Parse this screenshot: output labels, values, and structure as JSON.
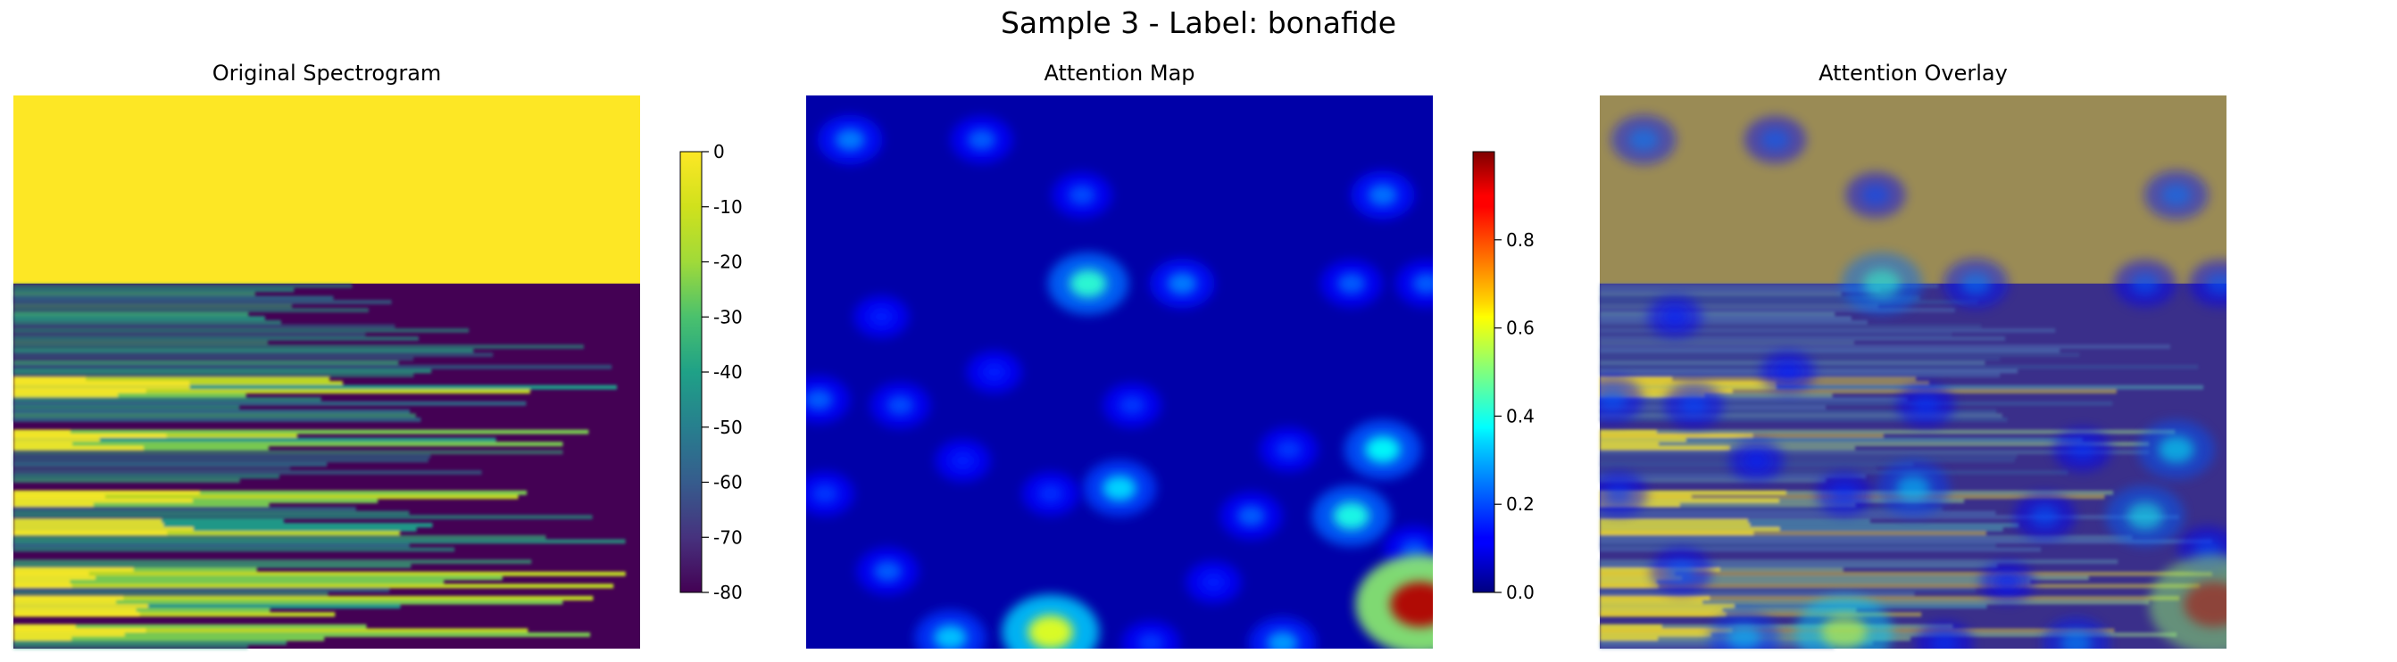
{
  "figure": {
    "title": "Sample 3 - Label: bonafide"
  },
  "chart_data": [
    {
      "type": "heatmap",
      "title": "Original Spectrogram",
      "colormap": "viridis",
      "axes": "off",
      "colorbar": {
        "range": [
          -80,
          0
        ],
        "ticks": [
          "0",
          "-10",
          "-20",
          "-30",
          "-40",
          "-50",
          "-60",
          "-70",
          "-80"
        ],
        "tick_values": [
          0,
          -10,
          -20,
          -30,
          -40,
          -50,
          -60,
          -70,
          -80
        ]
      },
      "saturated_top_fraction": 0.34
    },
    {
      "type": "heatmap",
      "title": "Attention Map",
      "colormap": "jet",
      "axes": "off",
      "colorbar": {
        "range": [
          0.0,
          1.0
        ],
        "ticks": [
          "0.0",
          "0.2",
          "0.4",
          "0.6",
          "0.8"
        ],
        "tick_values": [
          0.0,
          0.2,
          0.4,
          0.6,
          0.8
        ]
      },
      "hotspots": [
        {
          "x": 0.07,
          "y": 0.08,
          "v": 0.25
        },
        {
          "x": 0.28,
          "y": 0.08,
          "v": 0.22
        },
        {
          "x": 0.44,
          "y": 0.18,
          "v": 0.2
        },
        {
          "x": 0.92,
          "y": 0.18,
          "v": 0.24
        },
        {
          "x": 0.45,
          "y": 0.34,
          "v": 0.42
        },
        {
          "x": 0.6,
          "y": 0.34,
          "v": 0.25
        },
        {
          "x": 0.87,
          "y": 0.34,
          "v": 0.22
        },
        {
          "x": 0.99,
          "y": 0.34,
          "v": 0.22
        },
        {
          "x": 0.12,
          "y": 0.4,
          "v": 0.15
        },
        {
          "x": 0.3,
          "y": 0.5,
          "v": 0.15
        },
        {
          "x": 0.02,
          "y": 0.55,
          "v": 0.22
        },
        {
          "x": 0.15,
          "y": 0.56,
          "v": 0.2
        },
        {
          "x": 0.52,
          "y": 0.56,
          "v": 0.18
        },
        {
          "x": 0.92,
          "y": 0.64,
          "v": 0.38
        },
        {
          "x": 0.77,
          "y": 0.64,
          "v": 0.18
        },
        {
          "x": 0.25,
          "y": 0.66,
          "v": 0.15
        },
        {
          "x": 0.5,
          "y": 0.71,
          "v": 0.34
        },
        {
          "x": 0.03,
          "y": 0.72,
          "v": 0.18
        },
        {
          "x": 0.39,
          "y": 0.72,
          "v": 0.17
        },
        {
          "x": 0.71,
          "y": 0.76,
          "v": 0.22
        },
        {
          "x": 0.87,
          "y": 0.76,
          "v": 0.4
        },
        {
          "x": 0.97,
          "y": 0.82,
          "v": 0.2
        },
        {
          "x": 0.13,
          "y": 0.86,
          "v": 0.22
        },
        {
          "x": 0.65,
          "y": 0.88,
          "v": 0.15
        },
        {
          "x": 0.98,
          "y": 0.92,
          "v": 0.95
        },
        {
          "x": 0.39,
          "y": 0.97,
          "v": 0.6
        },
        {
          "x": 0.23,
          "y": 0.98,
          "v": 0.32
        },
        {
          "x": 0.55,
          "y": 0.99,
          "v": 0.18
        },
        {
          "x": 0.76,
          "y": 0.99,
          "v": 0.28
        }
      ]
    },
    {
      "type": "heatmap",
      "title": "Attention Overlay",
      "colormap": "viridis + jet (alpha blended)",
      "axes": "off"
    }
  ]
}
